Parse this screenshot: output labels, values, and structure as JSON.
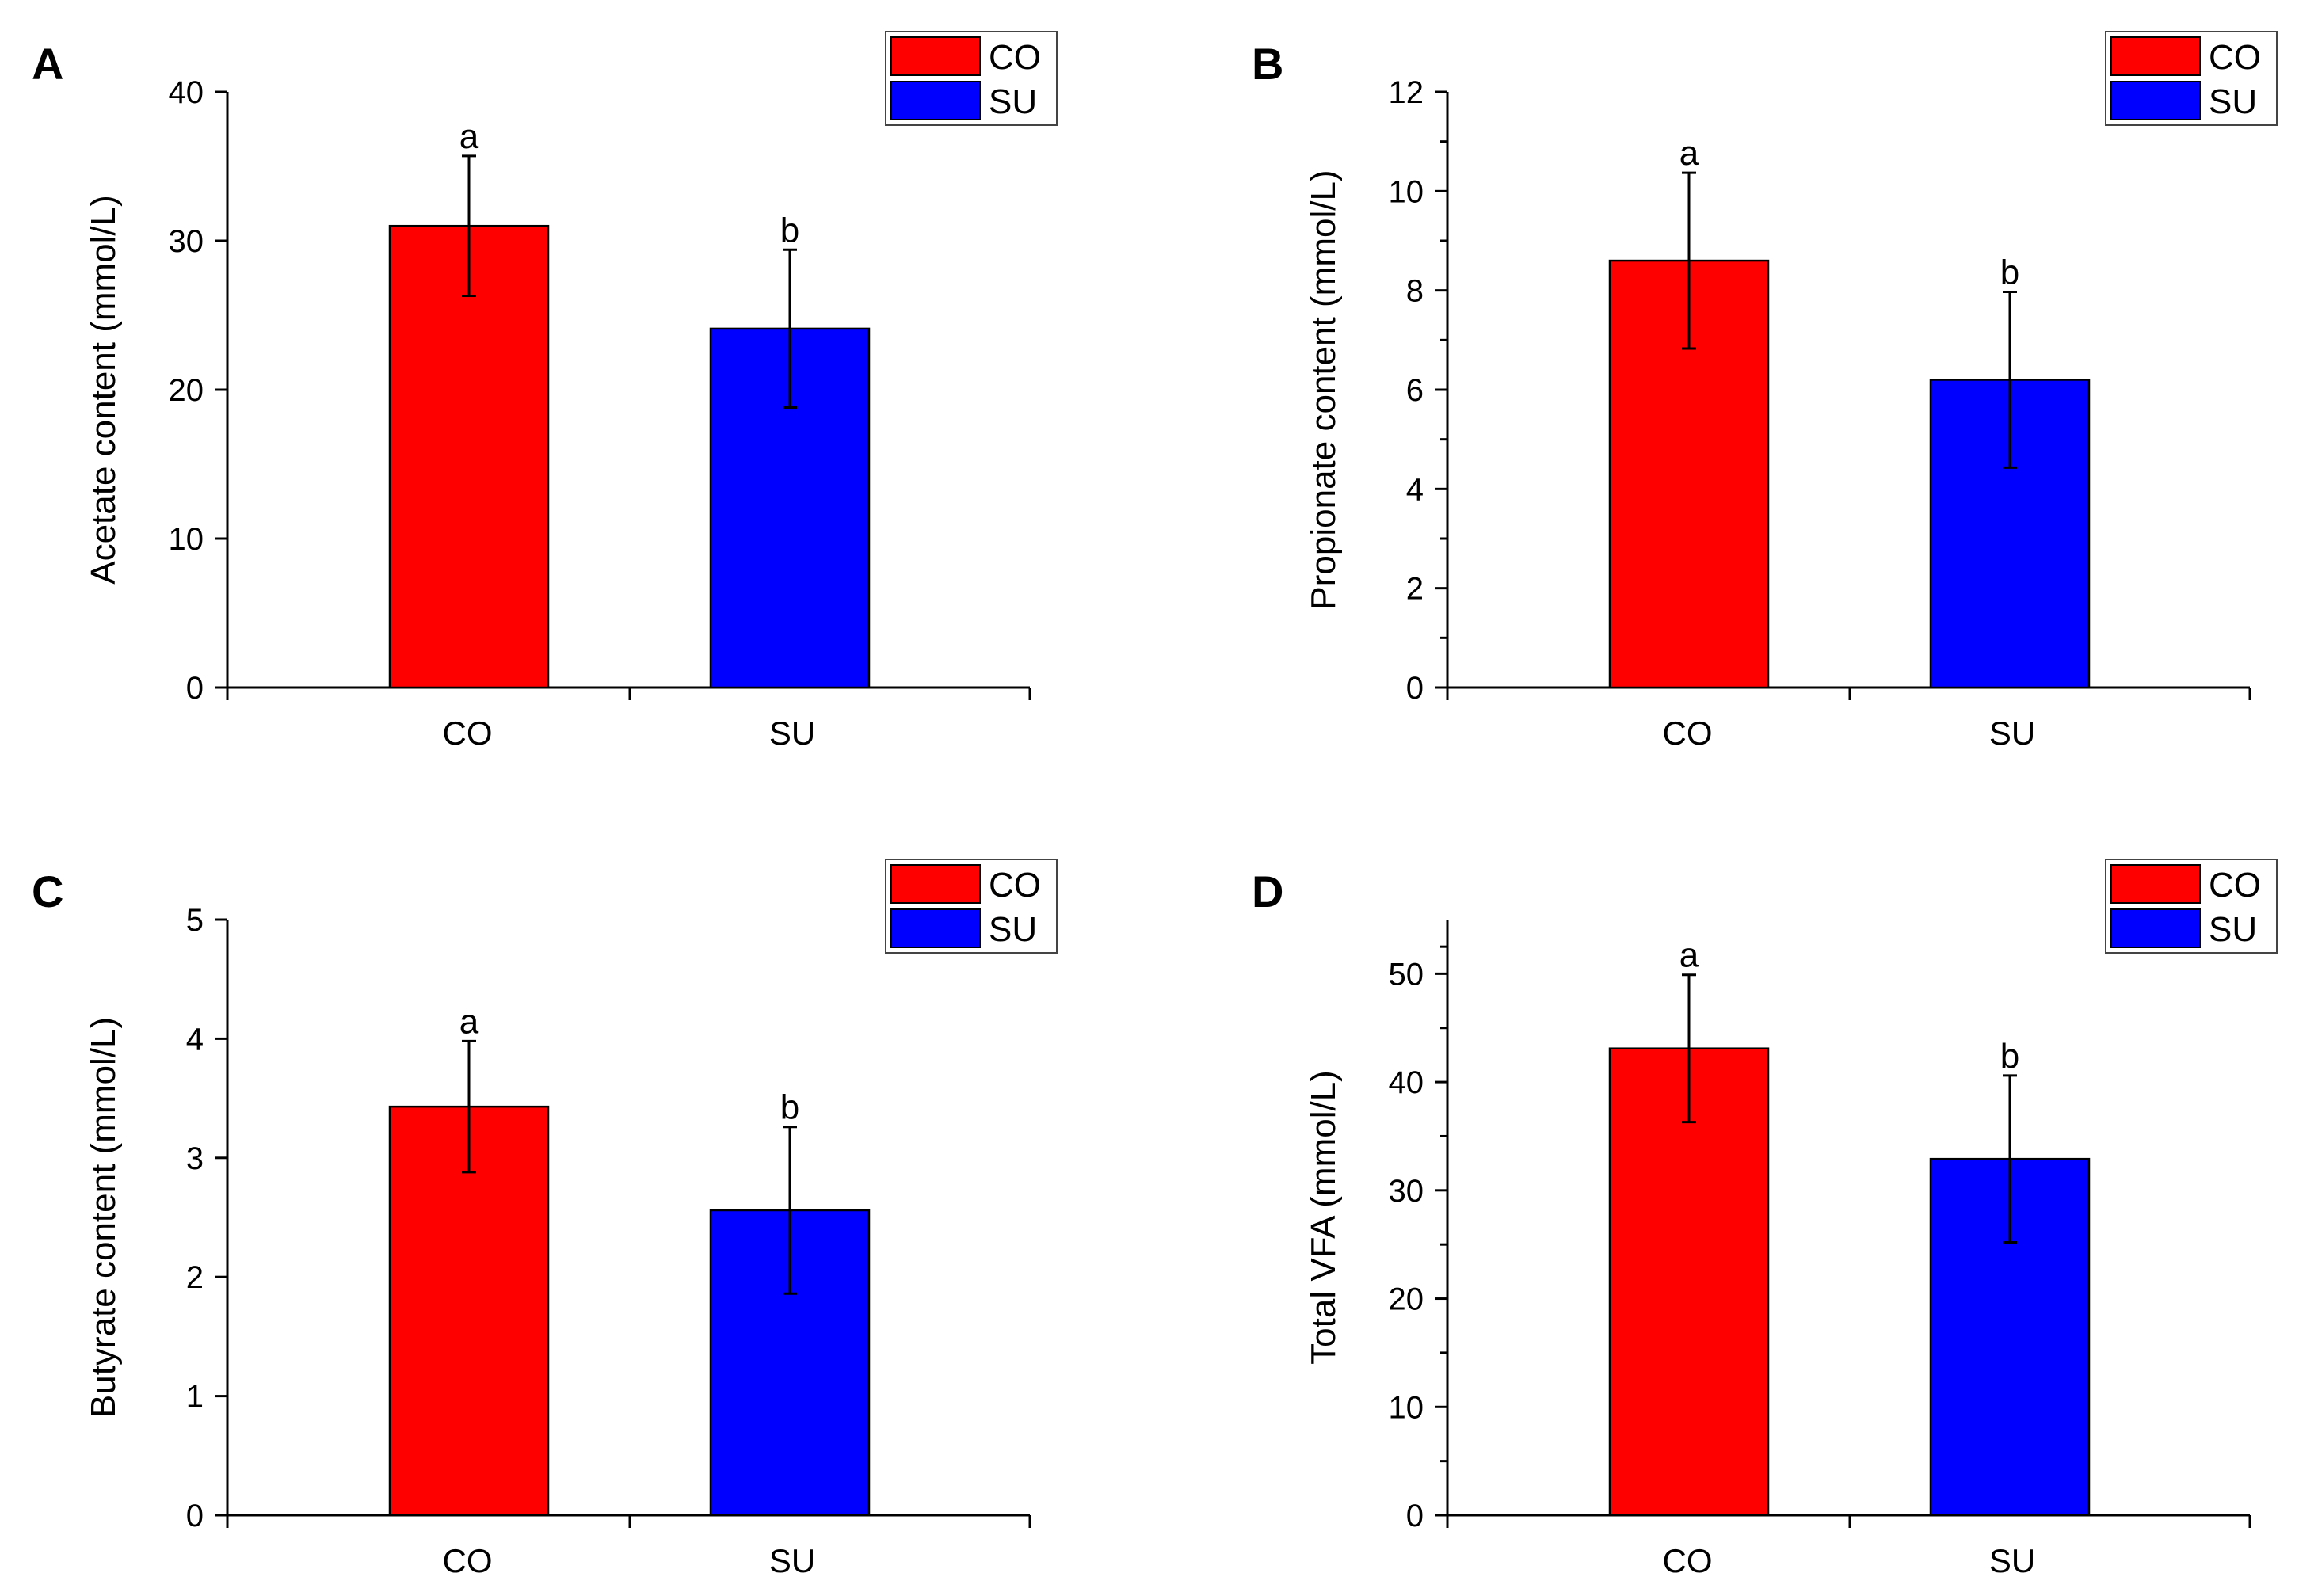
{
  "chart_data": [
    {
      "panel": "A",
      "type": "bar",
      "categories": [
        "CO",
        "SU"
      ],
      "values": [
        31.0,
        24.1
      ],
      "errors": [
        4.7,
        5.3
      ],
      "significance": [
        "a",
        "b"
      ],
      "ylabel": "Acetate content (mmol/L)",
      "ylim": [
        0,
        40
      ],
      "yticks": [
        0,
        10,
        20,
        30,
        40
      ],
      "ytick_labels": [
        "0",
        "10",
        "20",
        "30",
        "40"
      ],
      "legend": [
        "CO",
        "SU"
      ]
    },
    {
      "panel": "B",
      "type": "bar",
      "categories": [
        "CO",
        "SU"
      ],
      "values": [
        8.6,
        6.2
      ],
      "errors": [
        1.77,
        1.77
      ],
      "significance": [
        "a",
        "b"
      ],
      "ylabel": "Propionate content (mmol/L)",
      "ylim": [
        0,
        12
      ],
      "yticks": [
        0,
        2,
        4,
        6,
        8,
        10,
        12
      ],
      "ytick_labels": [
        "0",
        "2",
        "4",
        "6",
        "8",
        "10",
        "12"
      ],
      "legend": [
        "CO",
        "SU"
      ]
    },
    {
      "panel": "C",
      "type": "bar",
      "categories": [
        "CO",
        "SU"
      ],
      "values": [
        3.43,
        2.56
      ],
      "errors": [
        0.55,
        0.7
      ],
      "significance": [
        "a",
        "b"
      ],
      "ylabel": "Butyrate content (mmol/L)",
      "ylim": [
        0,
        5
      ],
      "yticks": [
        0,
        1,
        2,
        3,
        4,
        5
      ],
      "ytick_labels": [
        "0",
        "1",
        "2",
        "3",
        "4",
        "5"
      ],
      "legend": [
        "CO",
        "SU"
      ]
    },
    {
      "panel": "D",
      "type": "bar",
      "categories": [
        "CO",
        "SU"
      ],
      "values": [
        43.1,
        32.9
      ],
      "errors": [
        6.8,
        7.7
      ],
      "significance": [
        "a",
        "b"
      ],
      "ylabel": "Total VFA (mmol/L)",
      "ylim": [
        0,
        55
      ],
      "yticks": [
        0,
        10,
        20,
        30,
        40,
        50
      ],
      "ytick_labels": [
        "0",
        "10",
        "20",
        "30",
        "40",
        "50"
      ],
      "legend": [
        "CO",
        "SU"
      ]
    }
  ],
  "colors": {
    "CO": "#ff0000",
    "SU": "#0000ff"
  }
}
